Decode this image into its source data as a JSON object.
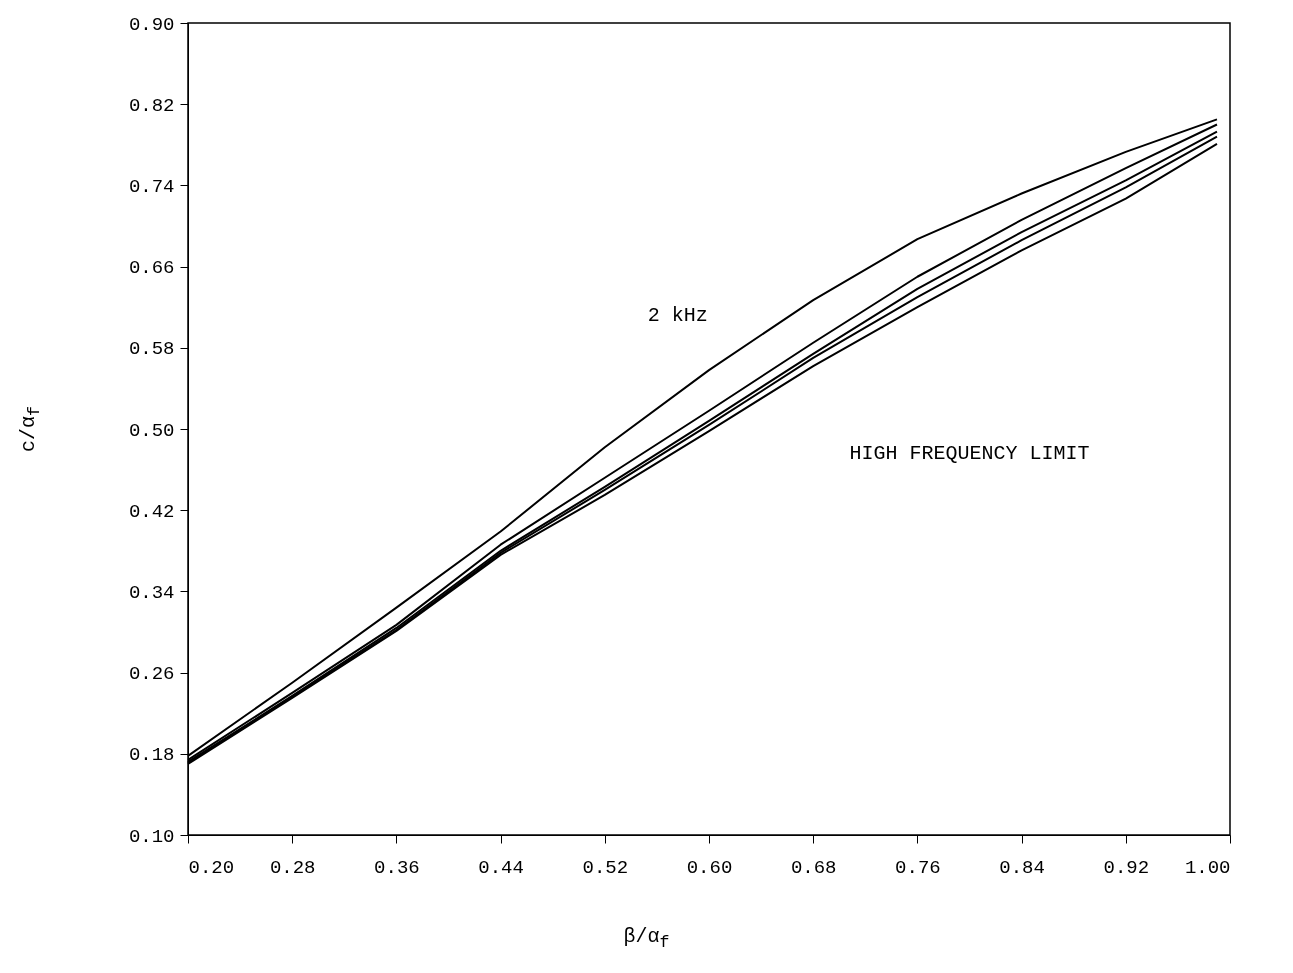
{
  "chart_data": {
    "type": "line",
    "xlabel": "β/α$_{f}$",
    "ylabel": "c/α$_{f}$",
    "x": [
      0.2,
      0.28,
      0.36,
      0.44,
      0.52,
      0.6,
      0.68,
      0.76,
      0.84,
      0.92,
      0.99
    ],
    "series": [
      {
        "color": "#000000",
        "values": [
          0.178,
          0.25,
          0.324,
          0.399,
          0.482,
          0.558,
          0.627,
          0.687,
          0.732,
          0.773,
          0.805
        ]
      },
      {
        "color": "#000000",
        "values": [
          0.174,
          0.24,
          0.307,
          0.386,
          0.452,
          0.518,
          0.585,
          0.65,
          0.706,
          0.757,
          0.8
        ]
      },
      {
        "color": "#000000",
        "values": [
          0.172,
          0.237,
          0.304,
          0.38,
          0.443,
          0.508,
          0.574,
          0.638,
          0.694,
          0.745,
          0.793
        ]
      },
      {
        "color": "#000000",
        "values": [
          0.171,
          0.236,
          0.302,
          0.378,
          0.44,
          0.504,
          0.57,
          0.63,
          0.686,
          0.738,
          0.788
        ]
      },
      {
        "color": "#000000",
        "values": [
          0.17,
          0.235,
          0.301,
          0.376,
          0.435,
          0.498,
          0.562,
          0.62,
          0.676,
          0.727,
          0.781
        ]
      }
    ],
    "annotations": [
      "2 kHz",
      "HIGH FREQUENCY LIMIT"
    ],
    "xlim": [
      0.2,
      1.0
    ],
    "xticks": [
      {
        "value": 0.2,
        "label": "0.20"
      },
      0.28,
      0.36,
      0.44,
      0.52,
      {
        "value": 0.6,
        "label": "0.60"
      },
      0.68,
      0.76,
      0.84,
      0.92,
      {
        "value": 1.0,
        "label": "1.00"
      }
    ],
    "ylim": [
      0.1,
      0.9
    ],
    "yticks": [
      {
        "value": 0.1,
        "label": "0.10"
      },
      0.18,
      0.26,
      0.34,
      0.42,
      {
        "value": 0.5,
        "label": "0.50"
      },
      0.58,
      0.66,
      0.74,
      0.82,
      {
        "value": 0.9,
        "label": "0.90"
      }
    ],
    "grid": false,
    "marker": "none",
    "line_style": "solid"
  }
}
